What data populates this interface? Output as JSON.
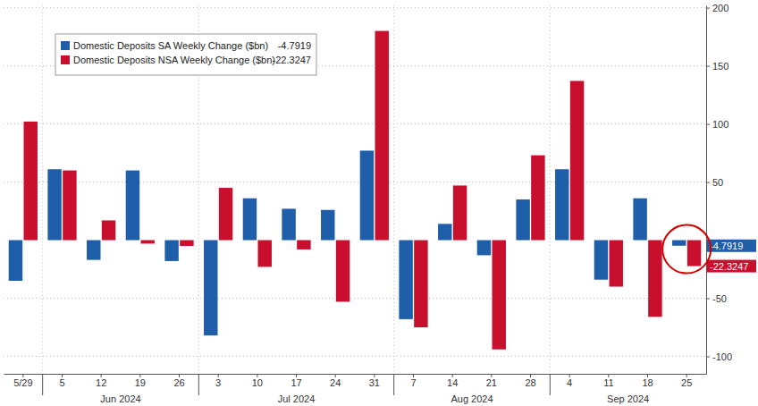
{
  "chart_data": {
    "type": "bar",
    "categories": [
      "5/29",
      "5",
      "12",
      "19",
      "26",
      "3",
      "10",
      "17",
      "24",
      "31",
      "7",
      "14",
      "21",
      "28",
      "4",
      "11",
      "18",
      "25"
    ],
    "x_groups": [
      {
        "label": "Jun 2024",
        "first": 1,
        "last": 4
      },
      {
        "label": "Jul 2024",
        "first": 5,
        "last": 9
      },
      {
        "label": "Aug 2024",
        "first": 10,
        "last": 13
      },
      {
        "label": "Sep 2024",
        "first": 14,
        "last": 17
      }
    ],
    "series": [
      {
        "name": "Domestic Deposits SA Weekly Change ($bn)",
        "color": "#1f5ea8",
        "values": [
          -35,
          61,
          -17,
          60,
          -18,
          -82,
          36,
          27,
          26,
          77,
          -68,
          14,
          -13,
          35,
          61,
          -34,
          36,
          -4.7919
        ]
      },
      {
        "name": "Domestic Deposits NSA Weekly Change ($bn)",
        "color": "#c8102e",
        "values": [
          102,
          60,
          17,
          -3,
          -5,
          45,
          -23,
          -8,
          -53,
          180,
          -75,
          47,
          -94,
          73,
          137,
          -40,
          -66,
          -22.3247
        ]
      }
    ],
    "ylim": [
      -115,
      202
    ],
    "yticks": [
      -100,
      -50,
      50,
      100,
      150,
      200
    ],
    "grid": true,
    "legend": "top-left"
  }
}
